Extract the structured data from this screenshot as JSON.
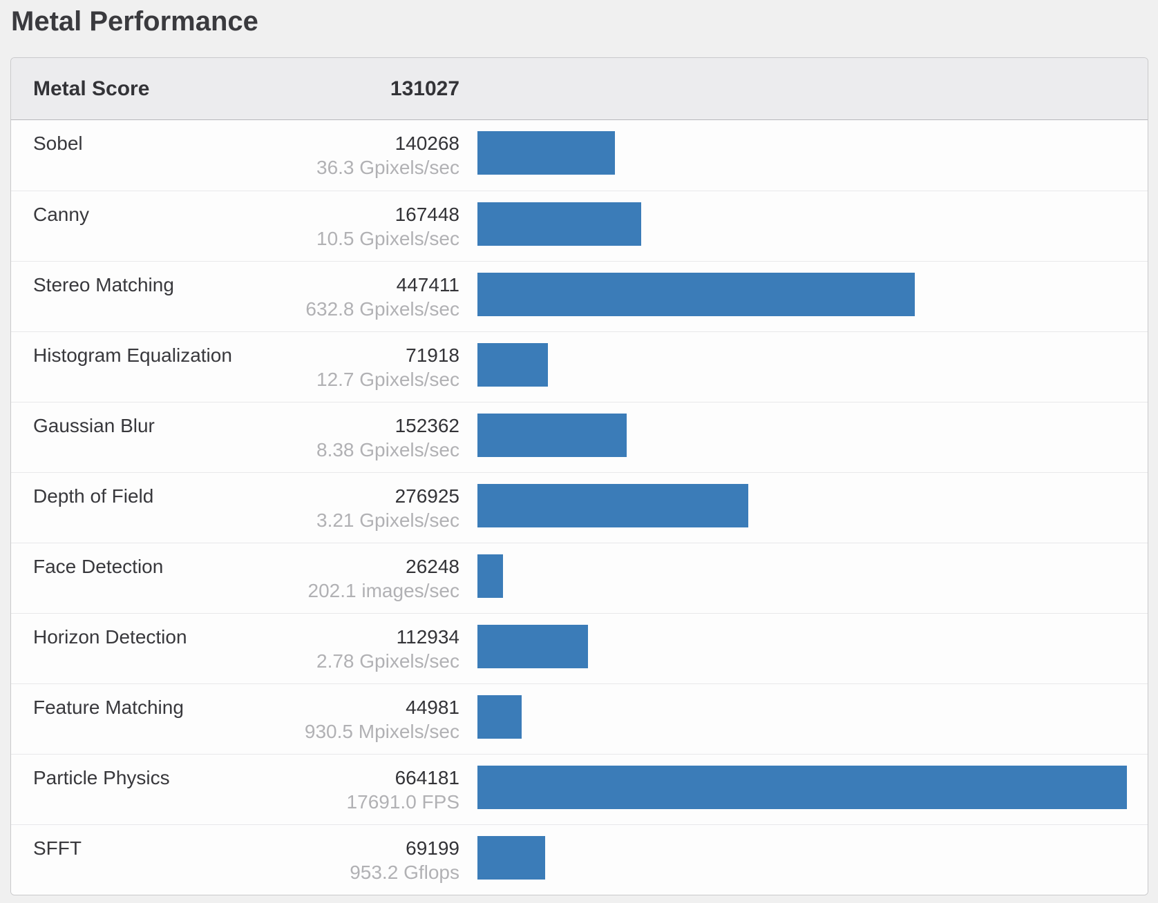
{
  "page": {
    "title": "Metal Performance"
  },
  "chart_data": {
    "type": "bar",
    "orientation": "horizontal",
    "title": "Metal Performance",
    "header": {
      "label": "Metal Score",
      "value": "131027"
    },
    "bar_color": "#3b7cb8",
    "xlim": [
      0,
      664181
    ],
    "grid": false,
    "legend": false,
    "rows": [
      {
        "name": "Sobel",
        "score": 140268,
        "rate": "36.3 Gpixels/sec"
      },
      {
        "name": "Canny",
        "score": 167448,
        "rate": "10.5 Gpixels/sec"
      },
      {
        "name": "Stereo Matching",
        "score": 447411,
        "rate": "632.8 Gpixels/sec"
      },
      {
        "name": "Histogram Equalization",
        "score": 71918,
        "rate": "12.7 Gpixels/sec"
      },
      {
        "name": "Gaussian Blur",
        "score": 152362,
        "rate": "8.38 Gpixels/sec"
      },
      {
        "name": "Depth of Field",
        "score": 276925,
        "rate": "3.21 Gpixels/sec"
      },
      {
        "name": "Face Detection",
        "score": 26248,
        "rate": "202.1 images/sec"
      },
      {
        "name": "Horizon Detection",
        "score": 112934,
        "rate": "2.78 Gpixels/sec"
      },
      {
        "name": "Feature Matching",
        "score": 44981,
        "rate": "930.5 Mpixels/sec"
      },
      {
        "name": "Particle Physics",
        "score": 664181,
        "rate": "17691.0 FPS"
      },
      {
        "name": "SFFT",
        "score": 69199,
        "rate": "953.2 Gflops"
      }
    ]
  }
}
